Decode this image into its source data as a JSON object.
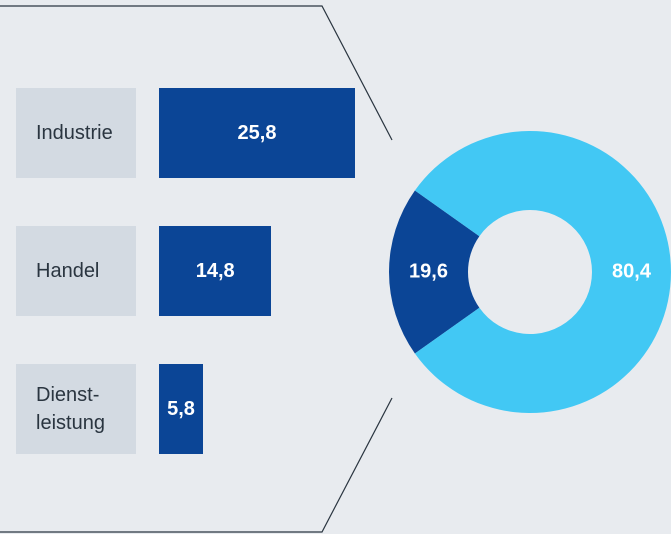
{
  "chart_data": [
    {
      "type": "bar",
      "orientation": "horizontal",
      "categories": [
        "Industrie",
        "Handel",
        "Dienst-\nleistung"
      ],
      "values": [
        25.8,
        14.8,
        5.8
      ],
      "value_labels": [
        "25,8",
        "14,8",
        "5,8"
      ],
      "color": "#0b4596"
    },
    {
      "type": "pie",
      "donut": true,
      "values": [
        19.6,
        80.4
      ],
      "value_labels": [
        "19,6",
        "80,4"
      ],
      "colors": [
        "#0b4596",
        "#42c8f4"
      ]
    }
  ]
}
